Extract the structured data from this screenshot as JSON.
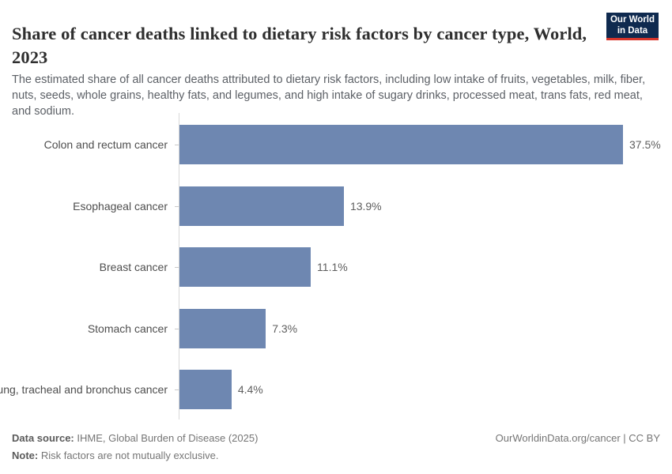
{
  "header": {
    "title": "Share of cancer deaths linked to dietary risk factors by cancer type, World, 2023",
    "subtitle": "The estimated share of all cancer deaths attributed to dietary risk factors, including low intake of fruits, vegetables, milk, fiber, nuts, seeds, whole grains, healthy fats, and legumes, and high intake of sugary drinks, processed meat, trans fats, red meat, and sodium.",
    "logo": {
      "line1": "Our World",
      "line2": "in Data",
      "bg_color": "#0f2a4f",
      "accent_color": "#d8352a"
    }
  },
  "chart_data": {
    "type": "bar",
    "orientation": "horizontal",
    "title": "Share of cancer deaths linked to dietary risk factors by cancer type",
    "entity": "World",
    "year": "2023",
    "categories": [
      "Colon and rectum cancer",
      "Esophageal cancer",
      "Breast cancer",
      "Stomach cancer",
      "Lung, tracheal and bronchus cancer"
    ],
    "values": [
      37.5,
      13.9,
      11.1,
      7.3,
      4.4
    ],
    "value_labels": [
      "37.5%",
      "13.9%",
      "11.1%",
      "7.3%",
      "4.4%"
    ],
    "unit": "%",
    "xlim": [
      0,
      37.5
    ],
    "grid": false,
    "legend": "none",
    "bar_color": "#6e87b1"
  },
  "footer": {
    "data_source_label": "Data source:",
    "data_source": " IHME, Global Burden of Disease (2025)",
    "note_label": "Note:",
    "note": " Risk factors are not mutually exclusive.",
    "credit": "OurWorldinData.org/cancer | CC BY"
  }
}
